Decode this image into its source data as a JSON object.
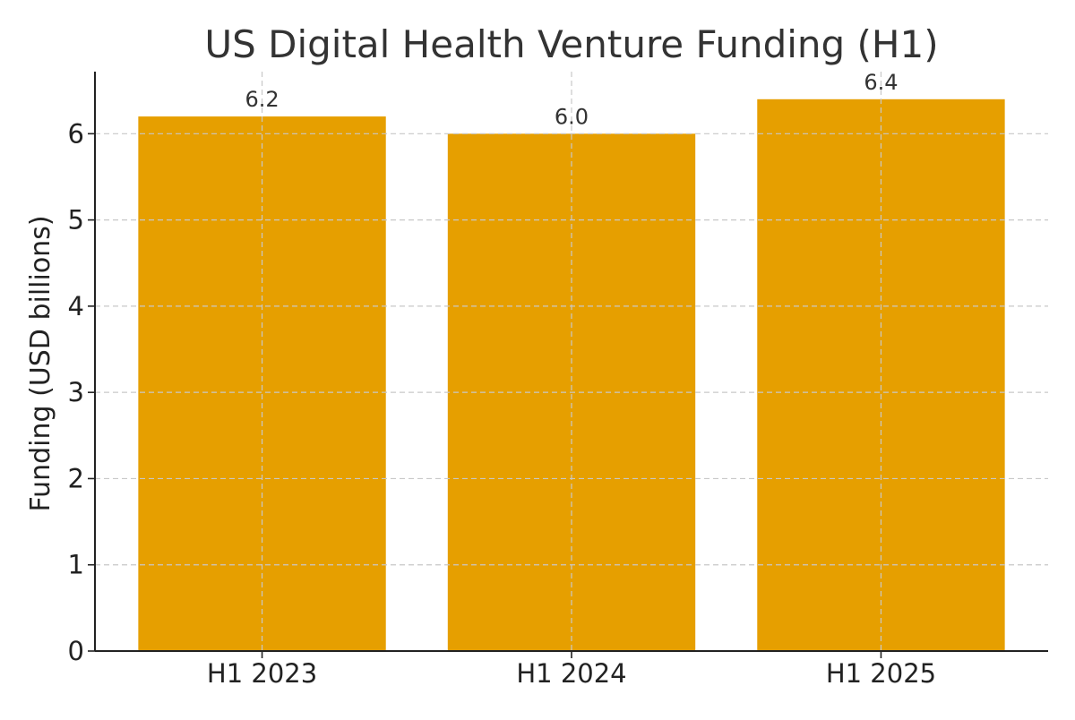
{
  "chart_data": {
    "type": "bar",
    "title": "US Digital Health Venture Funding (H1)",
    "xlabel": "",
    "ylabel": "Funding (USD billions)",
    "categories": [
      "H1 2023",
      "H1 2024",
      "H1 2025"
    ],
    "values": [
      6.2,
      6.0,
      6.4
    ],
    "data_labels": [
      "6.2",
      "6.0",
      "6.4"
    ],
    "yticks": [
      0,
      1,
      2,
      3,
      4,
      5,
      6
    ],
    "ylim": [
      0,
      6.72
    ],
    "grid": true,
    "legend": "none",
    "bar_color": "#E69F00"
  }
}
